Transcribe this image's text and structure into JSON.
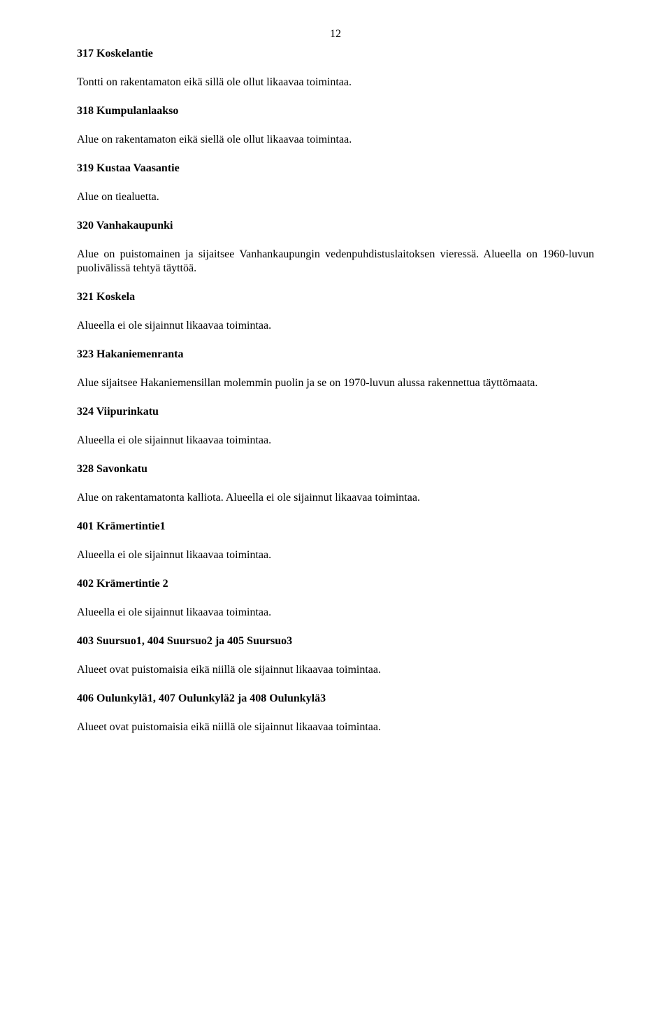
{
  "page_number": "12",
  "sections": {
    "s317": {
      "title": "317 Koskelantie",
      "body": "Tontti on rakentamaton eikä sillä ole ollut likaavaa toimintaa."
    },
    "s318": {
      "title": "318 Kumpulanlaakso",
      "body": "Alue on rakentamaton eikä siellä ole ollut likaavaa toimintaa."
    },
    "s319": {
      "title": "319 Kustaa Vaasantie",
      "body": "Alue on tiealuetta."
    },
    "s320": {
      "title": "320 Vanhakaupunki",
      "body": "Alue on puistomainen ja sijaitsee Vanhankaupungin vedenpuhdistuslaitoksen vieressä. Alueella on 1960-luvun puolivälissä tehtyä täyttöä."
    },
    "s321": {
      "title": "321 Koskela",
      "body": "Alueella ei ole sijainnut likaavaa toimintaa."
    },
    "s323": {
      "title": "323 Hakaniemenranta",
      "body": "Alue sijaitsee Hakaniemensillan molemmin puolin ja se on 1970-luvun alussa rakennettua täyttömaata."
    },
    "s324": {
      "title": "324 Viipurinkatu",
      "body": "Alueella ei ole sijainnut likaavaa toimintaa."
    },
    "s328": {
      "title": "328 Savonkatu",
      "body": "Alue on rakentamatonta kalliota. Alueella ei ole sijainnut likaavaa toimintaa."
    },
    "s401": {
      "title": "401 Krämertintie1",
      "body": "Alueella ei ole sijainnut likaavaa toimintaa."
    },
    "s402": {
      "title": "402 Krämertintie 2",
      "body": "Alueella ei ole sijainnut likaavaa toimintaa."
    },
    "s403": {
      "title": "403 Suursuo1, 404 Suursuo2 ja 405 Suursuo3",
      "body": "Alueet ovat puistomaisia eikä niillä ole sijainnut likaavaa toimintaa."
    },
    "s406": {
      "title": "406 Oulunkylä1, 407 Oulunkylä2 ja 408 Oulunkylä3",
      "body": "Alueet ovat puistomaisia eikä niillä ole sijainnut likaavaa toimintaa."
    }
  }
}
